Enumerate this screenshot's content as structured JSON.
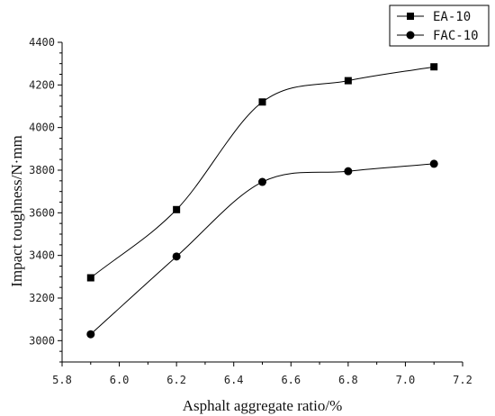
{
  "chart_data": {
    "type": "line",
    "xlabel": "Asphalt aggregate ratio/%",
    "ylabel": "Impact toughness/N·mm",
    "xlim": [
      5.8,
      7.2
    ],
    "ylim": [
      2900,
      4400
    ],
    "x_ticks": [
      "5.8",
      "6.0",
      "6.2",
      "6.4",
      "6.6",
      "6.8",
      "7.0",
      "7.2"
    ],
    "y_ticks": [
      "3000",
      "3200",
      "3400",
      "3600",
      "3800",
      "4000",
      "4200",
      "4400"
    ],
    "legend_position": "top-right",
    "series": [
      {
        "name": "EA-10",
        "marker": "square",
        "color": "#000000",
        "points": [
          {
            "x": 5.9,
            "y": 3295
          },
          {
            "x": 6.2,
            "y": 3615
          },
          {
            "x": 6.5,
            "y": 4120
          },
          {
            "x": 6.8,
            "y": 4220
          },
          {
            "x": 7.1,
            "y": 4285
          }
        ]
      },
      {
        "name": "FAC-10",
        "marker": "circle",
        "color": "#000000",
        "points": [
          {
            "x": 5.9,
            "y": 3030
          },
          {
            "x": 6.2,
            "y": 3395
          },
          {
            "x": 6.5,
            "y": 3745
          },
          {
            "x": 6.8,
            "y": 3795
          },
          {
            "x": 7.1,
            "y": 3830
          }
        ]
      }
    ]
  }
}
